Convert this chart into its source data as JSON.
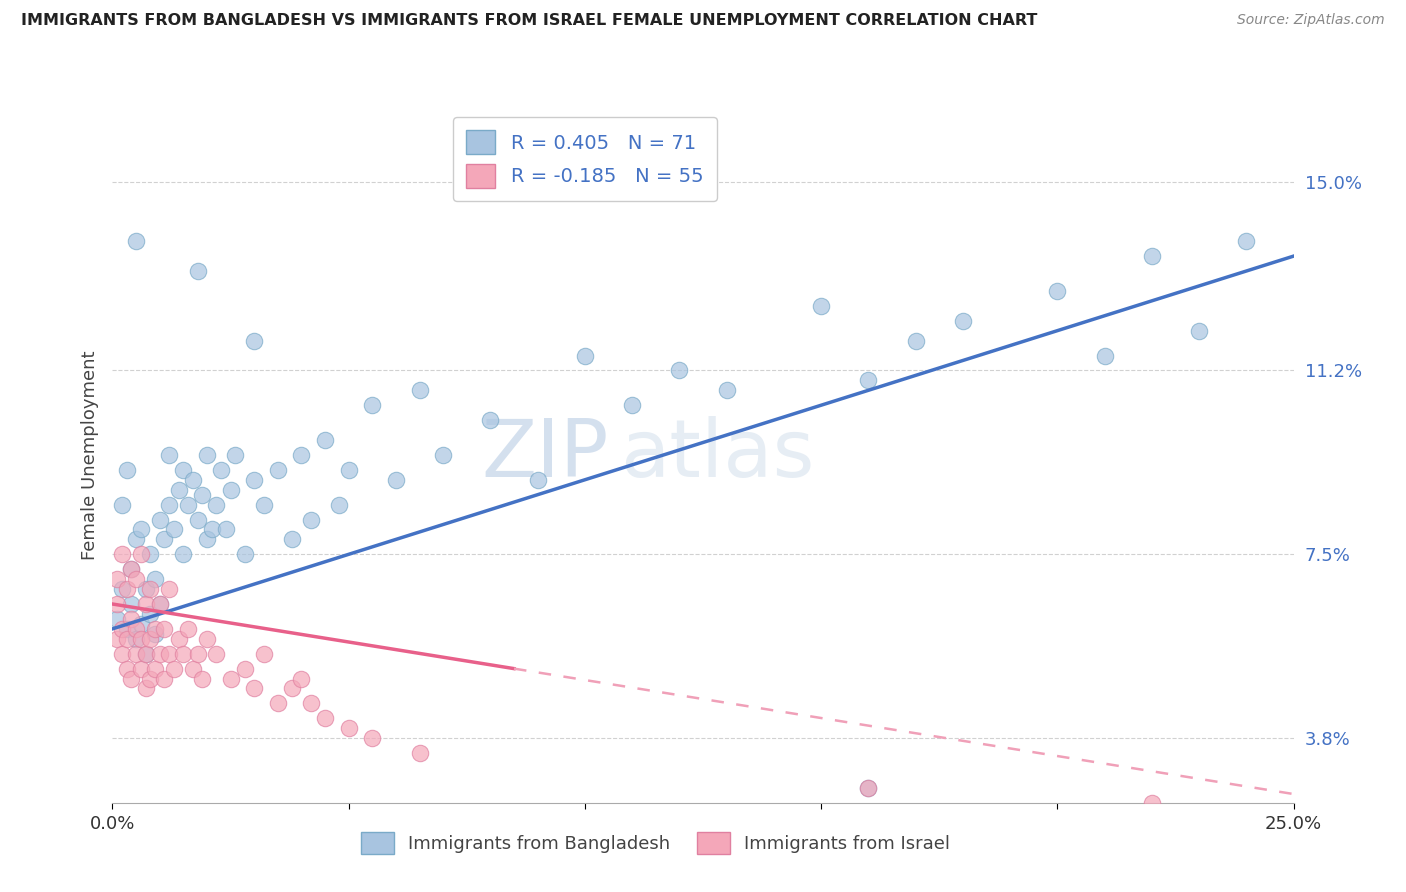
{
  "title": "IMMIGRANTS FROM BANGLADESH VS IMMIGRANTS FROM ISRAEL FEMALE UNEMPLOYMENT CORRELATION CHART",
  "source": "Source: ZipAtlas.com",
  "ylabel": "Female Unemployment",
  "ytick_vals": [
    3.8,
    7.5,
    11.2,
    15.0
  ],
  "ytick_labels": [
    "3.8%",
    "7.5%",
    "11.2%",
    "15.0%"
  ],
  "xlim": [
    0.0,
    0.25
  ],
  "ylim": [
    2.5,
    16.5
  ],
  "bangladesh_color": "#a8c4e0",
  "bangladesh_edge": "#7aaac8",
  "israel_color": "#f4a7b9",
  "israel_edge": "#e080a0",
  "bangladesh_R": 0.405,
  "bangladesh_N": 71,
  "israel_R": -0.185,
  "israel_N": 55,
  "blue_line_color": "#4472c4",
  "pink_line_color": "#e8608a",
  "pink_dash_color": "#f0a0b8",
  "bangladesh_scatter": [
    [
      0.001,
      6.2
    ],
    [
      0.002,
      6.8
    ],
    [
      0.002,
      8.5
    ],
    [
      0.003,
      6.0
    ],
    [
      0.003,
      9.2
    ],
    [
      0.004,
      6.5
    ],
    [
      0.004,
      7.2
    ],
    [
      0.005,
      5.8
    ],
    [
      0.005,
      7.8
    ],
    [
      0.006,
      6.1
    ],
    [
      0.006,
      8.0
    ],
    [
      0.007,
      5.5
    ],
    [
      0.007,
      6.8
    ],
    [
      0.008,
      6.3
    ],
    [
      0.008,
      7.5
    ],
    [
      0.009,
      5.9
    ],
    [
      0.009,
      7.0
    ],
    [
      0.01,
      6.5
    ],
    [
      0.01,
      8.2
    ],
    [
      0.011,
      7.8
    ],
    [
      0.012,
      8.5
    ],
    [
      0.012,
      9.5
    ],
    [
      0.013,
      8.0
    ],
    [
      0.014,
      8.8
    ],
    [
      0.015,
      7.5
    ],
    [
      0.015,
      9.2
    ],
    [
      0.016,
      8.5
    ],
    [
      0.017,
      9.0
    ],
    [
      0.018,
      8.2
    ],
    [
      0.019,
      8.7
    ],
    [
      0.02,
      7.8
    ],
    [
      0.02,
      9.5
    ],
    [
      0.021,
      8.0
    ],
    [
      0.022,
      8.5
    ],
    [
      0.023,
      9.2
    ],
    [
      0.024,
      8.0
    ],
    [
      0.025,
      8.8
    ],
    [
      0.026,
      9.5
    ],
    [
      0.028,
      7.5
    ],
    [
      0.03,
      9.0
    ],
    [
      0.032,
      8.5
    ],
    [
      0.035,
      9.2
    ],
    [
      0.038,
      7.8
    ],
    [
      0.04,
      9.5
    ],
    [
      0.042,
      8.2
    ],
    [
      0.045,
      9.8
    ],
    [
      0.048,
      8.5
    ],
    [
      0.05,
      9.2
    ],
    [
      0.055,
      10.5
    ],
    [
      0.06,
      9.0
    ],
    [
      0.065,
      10.8
    ],
    [
      0.07,
      9.5
    ],
    [
      0.08,
      10.2
    ],
    [
      0.09,
      9.0
    ],
    [
      0.1,
      11.5
    ],
    [
      0.11,
      10.5
    ],
    [
      0.12,
      11.2
    ],
    [
      0.13,
      10.8
    ],
    [
      0.15,
      12.5
    ],
    [
      0.16,
      11.0
    ],
    [
      0.17,
      11.8
    ],
    [
      0.18,
      12.2
    ],
    [
      0.2,
      12.8
    ],
    [
      0.21,
      11.5
    ],
    [
      0.22,
      13.5
    ],
    [
      0.23,
      12.0
    ],
    [
      0.24,
      13.8
    ],
    [
      0.005,
      13.8
    ],
    [
      0.018,
      13.2
    ],
    [
      0.03,
      11.8
    ],
    [
      0.16,
      2.8
    ]
  ],
  "israel_scatter": [
    [
      0.001,
      5.8
    ],
    [
      0.001,
      6.5
    ],
    [
      0.001,
      7.0
    ],
    [
      0.002,
      5.5
    ],
    [
      0.002,
      6.0
    ],
    [
      0.002,
      7.5
    ],
    [
      0.003,
      5.2
    ],
    [
      0.003,
      5.8
    ],
    [
      0.003,
      6.8
    ],
    [
      0.004,
      5.0
    ],
    [
      0.004,
      6.2
    ],
    [
      0.004,
      7.2
    ],
    [
      0.005,
      5.5
    ],
    [
      0.005,
      6.0
    ],
    [
      0.005,
      7.0
    ],
    [
      0.006,
      5.2
    ],
    [
      0.006,
      5.8
    ],
    [
      0.006,
      7.5
    ],
    [
      0.007,
      4.8
    ],
    [
      0.007,
      5.5
    ],
    [
      0.007,
      6.5
    ],
    [
      0.008,
      5.0
    ],
    [
      0.008,
      5.8
    ],
    [
      0.008,
      6.8
    ],
    [
      0.009,
      5.2
    ],
    [
      0.009,
      6.0
    ],
    [
      0.01,
      5.5
    ],
    [
      0.01,
      6.5
    ],
    [
      0.011,
      5.0
    ],
    [
      0.011,
      6.0
    ],
    [
      0.012,
      5.5
    ],
    [
      0.012,
      6.8
    ],
    [
      0.013,
      5.2
    ],
    [
      0.014,
      5.8
    ],
    [
      0.015,
      5.5
    ],
    [
      0.016,
      6.0
    ],
    [
      0.017,
      5.2
    ],
    [
      0.018,
      5.5
    ],
    [
      0.019,
      5.0
    ],
    [
      0.02,
      5.8
    ],
    [
      0.022,
      5.5
    ],
    [
      0.025,
      5.0
    ],
    [
      0.028,
      5.2
    ],
    [
      0.03,
      4.8
    ],
    [
      0.032,
      5.5
    ],
    [
      0.035,
      4.5
    ],
    [
      0.038,
      4.8
    ],
    [
      0.04,
      5.0
    ],
    [
      0.042,
      4.5
    ],
    [
      0.045,
      4.2
    ],
    [
      0.05,
      4.0
    ],
    [
      0.055,
      3.8
    ],
    [
      0.065,
      3.5
    ],
    [
      0.16,
      2.8
    ],
    [
      0.22,
      2.5
    ]
  ],
  "watermark_zip": "ZIP",
  "watermark_atlas": "atlas",
  "background_color": "#ffffff",
  "grid_color": "#cccccc"
}
